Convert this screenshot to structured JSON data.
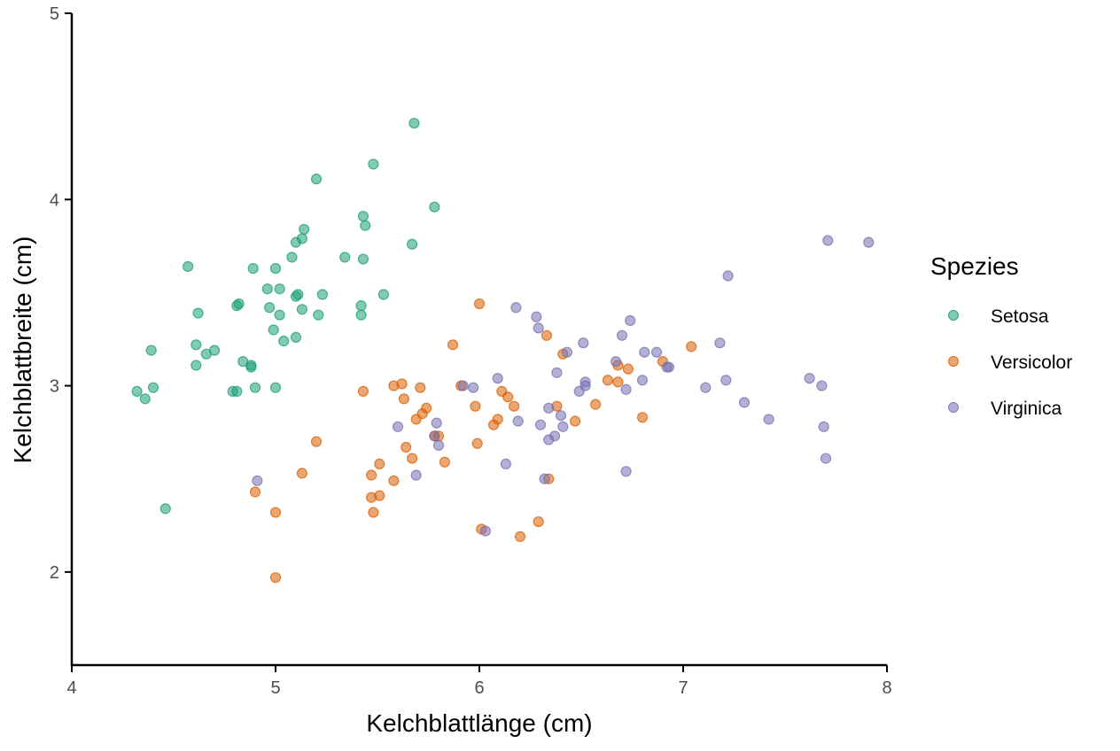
{
  "chart_data": {
    "type": "scatter",
    "title": "",
    "xlabel": "Kelchblattlänge (cm)",
    "ylabel": "Kelchblattbreite (cm)",
    "xlim": [
      4,
      8
    ],
    "ylim": [
      1.5,
      5
    ],
    "x_ticks": [
      "4",
      "5",
      "6",
      "7",
      "8"
    ],
    "y_ticks": [
      "2",
      "3",
      "4",
      "5"
    ],
    "grid": false,
    "legend": {
      "title": "Spezies",
      "placement": "right"
    },
    "series": [
      {
        "name": "Setosa",
        "color": "#1B9E77",
        "points": [
          [
            4.32,
            2.97
          ],
          [
            4.36,
            2.93
          ],
          [
            4.4,
            2.99
          ],
          [
            4.39,
            3.19
          ],
          [
            4.46,
            2.34
          ],
          [
            4.57,
            3.64
          ],
          [
            4.61,
            3.22
          ],
          [
            4.61,
            3.11
          ],
          [
            4.62,
            3.39
          ],
          [
            4.66,
            3.17
          ],
          [
            4.7,
            3.19
          ],
          [
            4.79,
            2.97
          ],
          [
            4.81,
            2.97
          ],
          [
            4.81,
            3.43
          ],
          [
            4.82,
            3.44
          ],
          [
            4.84,
            3.13
          ],
          [
            4.88,
            3.1
          ],
          [
            4.88,
            3.11
          ],
          [
            4.89,
            3.63
          ],
          [
            4.9,
            2.99
          ],
          [
            4.96,
            3.52
          ],
          [
            4.97,
            3.42
          ],
          [
            4.99,
            3.3
          ],
          [
            5.0,
            3.63
          ],
          [
            5.0,
            2.99
          ],
          [
            5.02,
            3.52
          ],
          [
            5.02,
            3.38
          ],
          [
            5.04,
            3.24
          ],
          [
            5.08,
            3.69
          ],
          [
            5.1,
            3.77
          ],
          [
            5.1,
            3.48
          ],
          [
            5.11,
            3.49
          ],
          [
            5.1,
            3.26
          ],
          [
            5.13,
            3.41
          ],
          [
            5.13,
            3.79
          ],
          [
            5.14,
            3.84
          ],
          [
            5.2,
            4.11
          ],
          [
            5.21,
            3.38
          ],
          [
            5.23,
            3.49
          ],
          [
            5.34,
            3.69
          ],
          [
            5.42,
            3.38
          ],
          [
            5.42,
            3.43
          ],
          [
            5.43,
            3.91
          ],
          [
            5.43,
            3.68
          ],
          [
            5.44,
            3.86
          ],
          [
            5.48,
            4.19
          ],
          [
            5.53,
            3.49
          ],
          [
            5.67,
            3.76
          ],
          [
            5.68,
            4.41
          ],
          [
            5.78,
            3.96
          ]
        ]
      },
      {
        "name": "Versicolor",
        "color": "#D95F02",
        "points": [
          [
            4.9,
            2.43
          ],
          [
            5.0,
            2.32
          ],
          [
            5.0,
            1.97
          ],
          [
            5.13,
            2.53
          ],
          [
            5.2,
            2.7
          ],
          [
            5.43,
            2.97
          ],
          [
            5.47,
            2.52
          ],
          [
            5.47,
            2.4
          ],
          [
            5.48,
            2.32
          ],
          [
            5.51,
            2.58
          ],
          [
            5.51,
            2.41
          ],
          [
            5.58,
            3.0
          ],
          [
            5.58,
            2.49
          ],
          [
            5.62,
            3.01
          ],
          [
            5.63,
            2.93
          ],
          [
            5.64,
            2.67
          ],
          [
            5.67,
            2.61
          ],
          [
            5.69,
            2.82
          ],
          [
            5.71,
            2.99
          ],
          [
            5.72,
            2.85
          ],
          [
            5.74,
            2.88
          ],
          [
            5.78,
            2.73
          ],
          [
            5.8,
            2.73
          ],
          [
            5.83,
            2.59
          ],
          [
            5.87,
            3.22
          ],
          [
            5.91,
            3.0
          ],
          [
            5.98,
            2.89
          ],
          [
            5.99,
            2.69
          ],
          [
            6.0,
            3.44
          ],
          [
            6.01,
            2.23
          ],
          [
            6.07,
            2.79
          ],
          [
            6.09,
            2.82
          ],
          [
            6.11,
            2.97
          ],
          [
            6.14,
            2.94
          ],
          [
            6.17,
            2.89
          ],
          [
            6.2,
            2.19
          ],
          [
            6.29,
            2.27
          ],
          [
            6.33,
            3.27
          ],
          [
            6.34,
            2.5
          ],
          [
            6.38,
            2.89
          ],
          [
            6.41,
            3.17
          ],
          [
            6.47,
            2.81
          ],
          [
            6.57,
            2.9
          ],
          [
            6.63,
            3.03
          ],
          [
            6.68,
            3.02
          ],
          [
            6.68,
            3.11
          ],
          [
            6.73,
            3.09
          ],
          [
            6.8,
            2.83
          ],
          [
            6.9,
            3.13
          ],
          [
            7.04,
            3.21
          ]
        ]
      },
      {
        "name": "Virginica",
        "color": "#7570B3",
        "points": [
          [
            4.91,
            2.49
          ],
          [
            5.6,
            2.78
          ],
          [
            5.69,
            2.52
          ],
          [
            5.78,
            2.73
          ],
          [
            5.79,
            2.8
          ],
          [
            5.8,
            2.68
          ],
          [
            5.92,
            3.0
          ],
          [
            5.97,
            2.99
          ],
          [
            6.03,
            2.22
          ],
          [
            6.09,
            3.04
          ],
          [
            6.13,
            2.58
          ],
          [
            6.18,
            3.42
          ],
          [
            6.19,
            2.81
          ],
          [
            6.28,
            3.37
          ],
          [
            6.29,
            3.31
          ],
          [
            6.3,
            2.79
          ],
          [
            6.32,
            2.5
          ],
          [
            6.34,
            2.88
          ],
          [
            6.34,
            2.71
          ],
          [
            6.37,
            2.73
          ],
          [
            6.38,
            3.07
          ],
          [
            6.4,
            2.84
          ],
          [
            6.41,
            2.78
          ],
          [
            6.43,
            3.18
          ],
          [
            6.49,
            2.97
          ],
          [
            6.51,
            3.23
          ],
          [
            6.52,
            3.02
          ],
          [
            6.52,
            3.0
          ],
          [
            6.67,
            3.13
          ],
          [
            6.7,
            3.27
          ],
          [
            6.72,
            2.98
          ],
          [
            6.72,
            2.54
          ],
          [
            6.74,
            3.35
          ],
          [
            6.8,
            3.03
          ],
          [
            6.81,
            3.18
          ],
          [
            6.87,
            3.18
          ],
          [
            6.92,
            3.1
          ],
          [
            6.93,
            3.1
          ],
          [
            7.11,
            2.99
          ],
          [
            7.18,
            3.23
          ],
          [
            7.21,
            3.03
          ],
          [
            7.22,
            3.59
          ],
          [
            7.3,
            2.91
          ],
          [
            7.42,
            2.82
          ],
          [
            7.62,
            3.04
          ],
          [
            7.68,
            3.0
          ],
          [
            7.69,
            2.78
          ],
          [
            7.7,
            2.61
          ],
          [
            7.71,
            3.78
          ],
          [
            7.91,
            3.77
          ]
        ]
      }
    ]
  }
}
